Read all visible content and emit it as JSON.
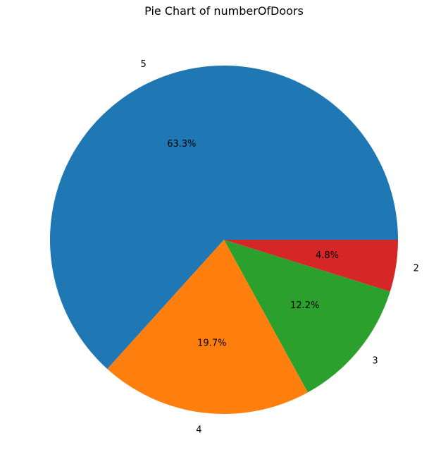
{
  "chart_data": {
    "type": "pie",
    "title": "Pie Chart of numberOfDoors",
    "categories": [
      "5",
      "4",
      "3",
      "2"
    ],
    "values": [
      63.3,
      19.7,
      12.2,
      4.8
    ],
    "percent_labels": [
      "63.3%",
      "19.7%",
      "12.2%",
      "4.8%"
    ],
    "colors": [
      "#1f77b4",
      "#ff7f0e",
      "#2ca02c",
      "#d62728"
    ],
    "start_angle_deg": 0,
    "direction": "counterclockwise",
    "legend": "none"
  }
}
